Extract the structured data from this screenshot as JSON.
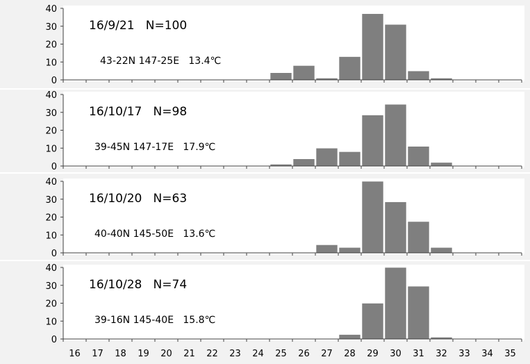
{
  "chart_data": {
    "type": "bar",
    "bar_color": "#7f7f7f",
    "panel_background": "#f2f2f2",
    "categories": [
      "16",
      "17",
      "18",
      "19",
      "20",
      "21",
      "22",
      "23",
      "24",
      "25",
      "26",
      "27",
      "28",
      "29",
      "30",
      "31",
      "32",
      "33",
      "34",
      "35"
    ],
    "ylim": [
      0,
      40
    ],
    "yticks": [
      "0",
      "10",
      "20",
      "30",
      "40"
    ],
    "grid": false,
    "panels": [
      {
        "title": "16/9/21   N=100",
        "location": "43-22N 147-25E   13.4℃",
        "values": [
          0,
          0,
          0,
          0,
          0,
          0,
          0,
          0,
          0,
          4,
          8,
          1,
          13,
          37,
          31,
          5,
          1,
          0,
          0,
          0
        ]
      },
      {
        "title": "16/10/17   N=98",
        "location": "39-45N 147-17E   17.9℃",
        "values": [
          0,
          0,
          0,
          0,
          0,
          0,
          0,
          0,
          0,
          1,
          4,
          10,
          8,
          28.5,
          34.5,
          11,
          2,
          0,
          0,
          0
        ]
      },
      {
        "title": "16/10/20   N=63",
        "location": "40-40N 145-50E   13.6℃",
        "values": [
          0,
          0,
          0,
          0,
          0,
          0,
          0,
          0,
          0,
          0,
          0,
          4.5,
          3,
          40,
          28.5,
          17.5,
          3,
          0,
          0,
          0
        ]
      },
      {
        "title": "16/10/28   N=74",
        "location": "39-16N 145-40E   15.8℃",
        "values": [
          0,
          0,
          0,
          0,
          0,
          0,
          0,
          0,
          0,
          0,
          0,
          0,
          2.5,
          20,
          40,
          29.5,
          1,
          0,
          0,
          0
        ]
      }
    ]
  }
}
